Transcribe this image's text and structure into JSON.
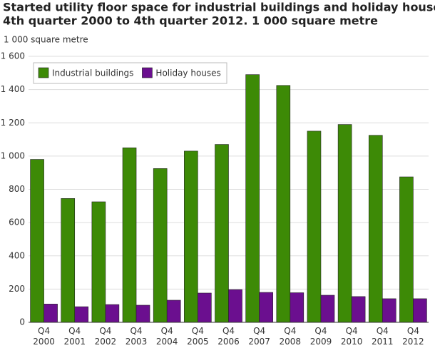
{
  "chart_data": {
    "type": "bar",
    "title": [
      "Started utility floor space for industrial buildings and holiday houses.",
      "4th quarter 2000 to 4th quarter 2012. 1 000 square metre"
    ],
    "y_axis_label": "1 000 square metre",
    "categories": [
      [
        "Q4",
        "2000"
      ],
      [
        "Q4",
        "2001"
      ],
      [
        "Q4",
        "2002"
      ],
      [
        "Q4",
        "2003"
      ],
      [
        "Q4",
        "2004"
      ],
      [
        "Q4",
        "2005"
      ],
      [
        "Q4",
        "2006"
      ],
      [
        "Q4",
        "2007"
      ],
      [
        "Q4",
        "2008"
      ],
      [
        "Q4",
        "2009"
      ],
      [
        "Q4",
        "2010"
      ],
      [
        "Q4",
        "2011"
      ],
      [
        "Q4",
        "2012"
      ]
    ],
    "series": [
      {
        "name": "Industrial buildings",
        "color": "#3d8a06",
        "values": [
          980,
          745,
          725,
          1050,
          925,
          1030,
          1070,
          1490,
          1425,
          1150,
          1190,
          1125,
          875
        ]
      },
      {
        "name": "Holiday houses",
        "color": "#6b0f8f",
        "values": [
          110,
          94,
          107,
          103,
          133,
          176,
          197,
          180,
          178,
          163,
          155,
          142,
          142
        ]
      }
    ],
    "ylim": [
      0,
      1600
    ],
    "yticks": [
      0,
      200,
      400,
      600,
      800,
      {
        "value": 1000,
        "label": "1 000"
      },
      {
        "value": 1200,
        "label": "1 200"
      },
      {
        "value": 1400,
        "label": "1 400"
      },
      {
        "value": 1600,
        "label": "1 600"
      }
    ],
    "grid": true,
    "legend": "top-left"
  }
}
